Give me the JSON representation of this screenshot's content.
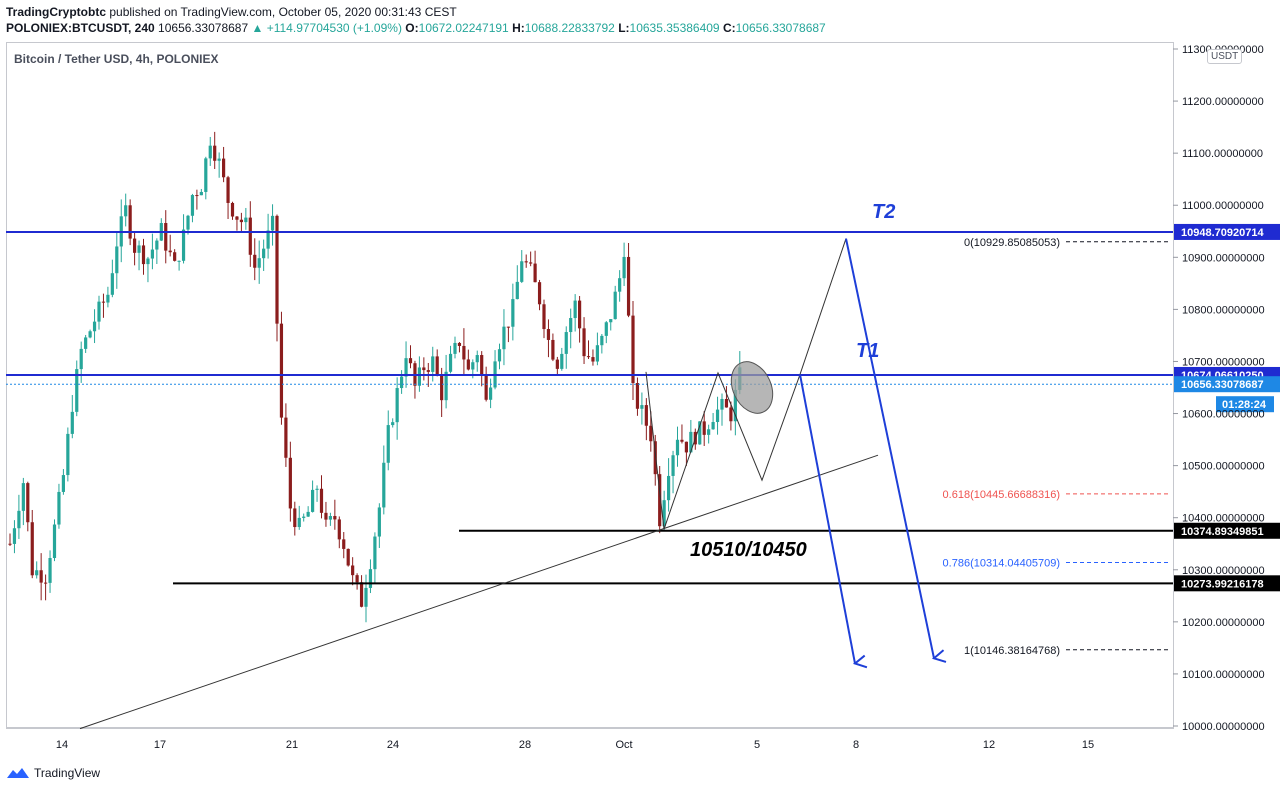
{
  "header": {
    "publisher": "TradingCryptobtc",
    "published_text": "published on TradingView.com, October 05, 2020 00:31:43 CEST",
    "symbol": "POLONIEX:BTCUSDT, 240",
    "last": "10656.33078687",
    "change": "+114.97704530 (+1.09%)",
    "o_label": "O:",
    "o": "10672.02247191",
    "h_label": "H:",
    "h": "10688.22833792",
    "l_label": "L:",
    "l": "10635.35386409",
    "c_label": "C:",
    "c": "10656.33078687"
  },
  "symbol_title": "Bitcoin / Tether USD, 4h, POLONIEX",
  "currency_badge": "USDT",
  "footer_brand": "TradingView",
  "colors": {
    "up": "#26a69a",
    "down": "#8b1d1d",
    "level_blue": "#1f2bd1",
    "arrow_blue": "#1e3fd8",
    "fib_red": "#ef5350",
    "fib_blue": "#2962ff"
  },
  "chart_data": {
    "type": "candlestick",
    "ylim": [
      10000,
      11300
    ],
    "y_ticks": [
      "11300.00000000",
      "11200.00000000",
      "11100.00000000",
      "11000.00000000",
      "10900.00000000",
      "10800.00000000",
      "10700.00000000",
      "10600.00000000",
      "10500.00000000",
      "10400.00000000",
      "10300.00000000",
      "10200.00000000",
      "10100.00000000",
      "10000.00000000"
    ],
    "x_ticks": [
      "14",
      "17",
      "21",
      "24",
      "28",
      "Oct",
      "5",
      "8",
      "12",
      "15"
    ],
    "horizontal_levels": [
      {
        "price": 10948.70920714,
        "label": "10948.70920714",
        "style": "blue"
      },
      {
        "price": 10674.0661025,
        "label": "10674.06610250",
        "style": "blue"
      },
      {
        "price": 10374.89349851,
        "label": "10374.89349851",
        "style": "black"
      },
      {
        "price": 10273.99216178,
        "label": "10273.99216178",
        "style": "black"
      }
    ],
    "price_labels": {
      "last_price": "10656.33078687",
      "countdown": "01:28:24"
    },
    "fib_levels": [
      {
        "ratio": "0",
        "text": "0(10929.85085053)",
        "price": 10929.85085053,
        "color": "#131722"
      },
      {
        "ratio": "0.618",
        "text": "0.618(10445.66688316)",
        "price": 10445.66688316,
        "color": "#ef5350"
      },
      {
        "ratio": "0.786",
        "text": "0.786(10314.04405709)",
        "price": 10314.04405709,
        "color": "#2962ff"
      },
      {
        "ratio": "1",
        "text": "1(10146.38164768)",
        "price": 10146.38164768,
        "color": "#131722"
      }
    ],
    "annotations": {
      "t2": "T2",
      "t1": "T1",
      "zone": "10510/10450"
    }
  }
}
